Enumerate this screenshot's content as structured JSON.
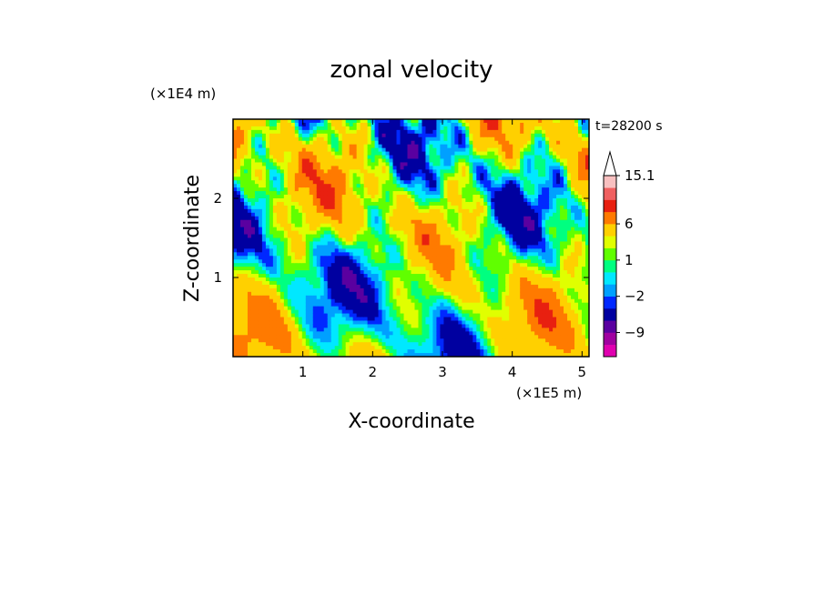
{
  "chart_data": {
    "type": "heatmap",
    "title": "zonal velocity",
    "xlabel": "X-coordinate",
    "ylabel": "Z-coordinate",
    "x_unit": "(×1E5 m)",
    "y_unit": "(×1E4 m)",
    "time_label": "t=28200 s",
    "xlim": [
      0,
      5.1
    ],
    "ylim": [
      0,
      3.0
    ],
    "x_ticks": [
      "1",
      "2",
      "3",
      "4",
      "5"
    ],
    "y_ticks": [
      "1",
      "2"
    ],
    "colorbar": {
      "levels": [
        -15,
        -12,
        -9,
        -6,
        -3,
        -2,
        -1,
        0,
        1,
        2,
        3,
        6,
        9,
        12,
        15.1
      ],
      "colors": [
        "#e000b0",
        "#a000a0",
        "#5a00a0",
        "#0000a0",
        "#0028ff",
        "#00a0ff",
        "#00e8ff",
        "#00ff80",
        "#60ff00",
        "#e0ff00",
        "#ffd000",
        "#ff7a00",
        "#e82010",
        "#f06060",
        "#f8c0c0"
      ],
      "labels": [
        "15.1",
        "6",
        "1",
        "−2",
        "−9"
      ],
      "extend": "max"
    },
    "field_description_note": ""
  }
}
